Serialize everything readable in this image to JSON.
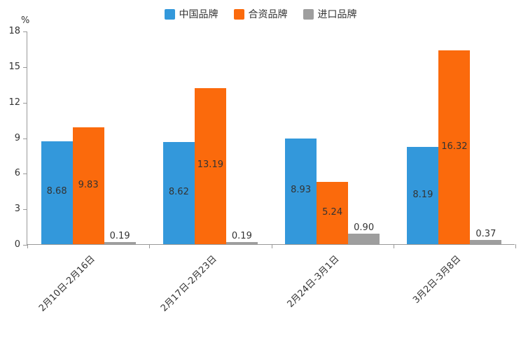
{
  "chart_data": {
    "type": "bar",
    "title": "",
    "categories": [
      "2月10日-2月16日",
      "2月17日-2月23日",
      "2月24日-3月1日",
      "3月2日-3月8日"
    ],
    "series": [
      {
        "name": "中国品牌",
        "color": "#3398DB",
        "values": [
          8.68,
          8.62,
          8.93,
          8.19
        ]
      },
      {
        "name": "合资品牌",
        "color": "#FB6A0C",
        "values": [
          9.83,
          13.19,
          5.24,
          16.32
        ]
      },
      {
        "name": "进口品牌",
        "color": "#9E9E9E",
        "values": [
          0.19,
          0.19,
          0.9,
          0.37
        ]
      }
    ],
    "xlabel": "",
    "ylabel": "%",
    "ylim": [
      0,
      18
    ],
    "yticks": [
      0,
      3,
      6,
      9,
      12,
      15,
      18
    ],
    "legend_position": "top",
    "grid": false,
    "x_tick_label_rotation": 45,
    "value_label_decimals": 2,
    "colors": {
      "axis": "#999999",
      "text": "#333333",
      "background": "#ffffff"
    }
  }
}
